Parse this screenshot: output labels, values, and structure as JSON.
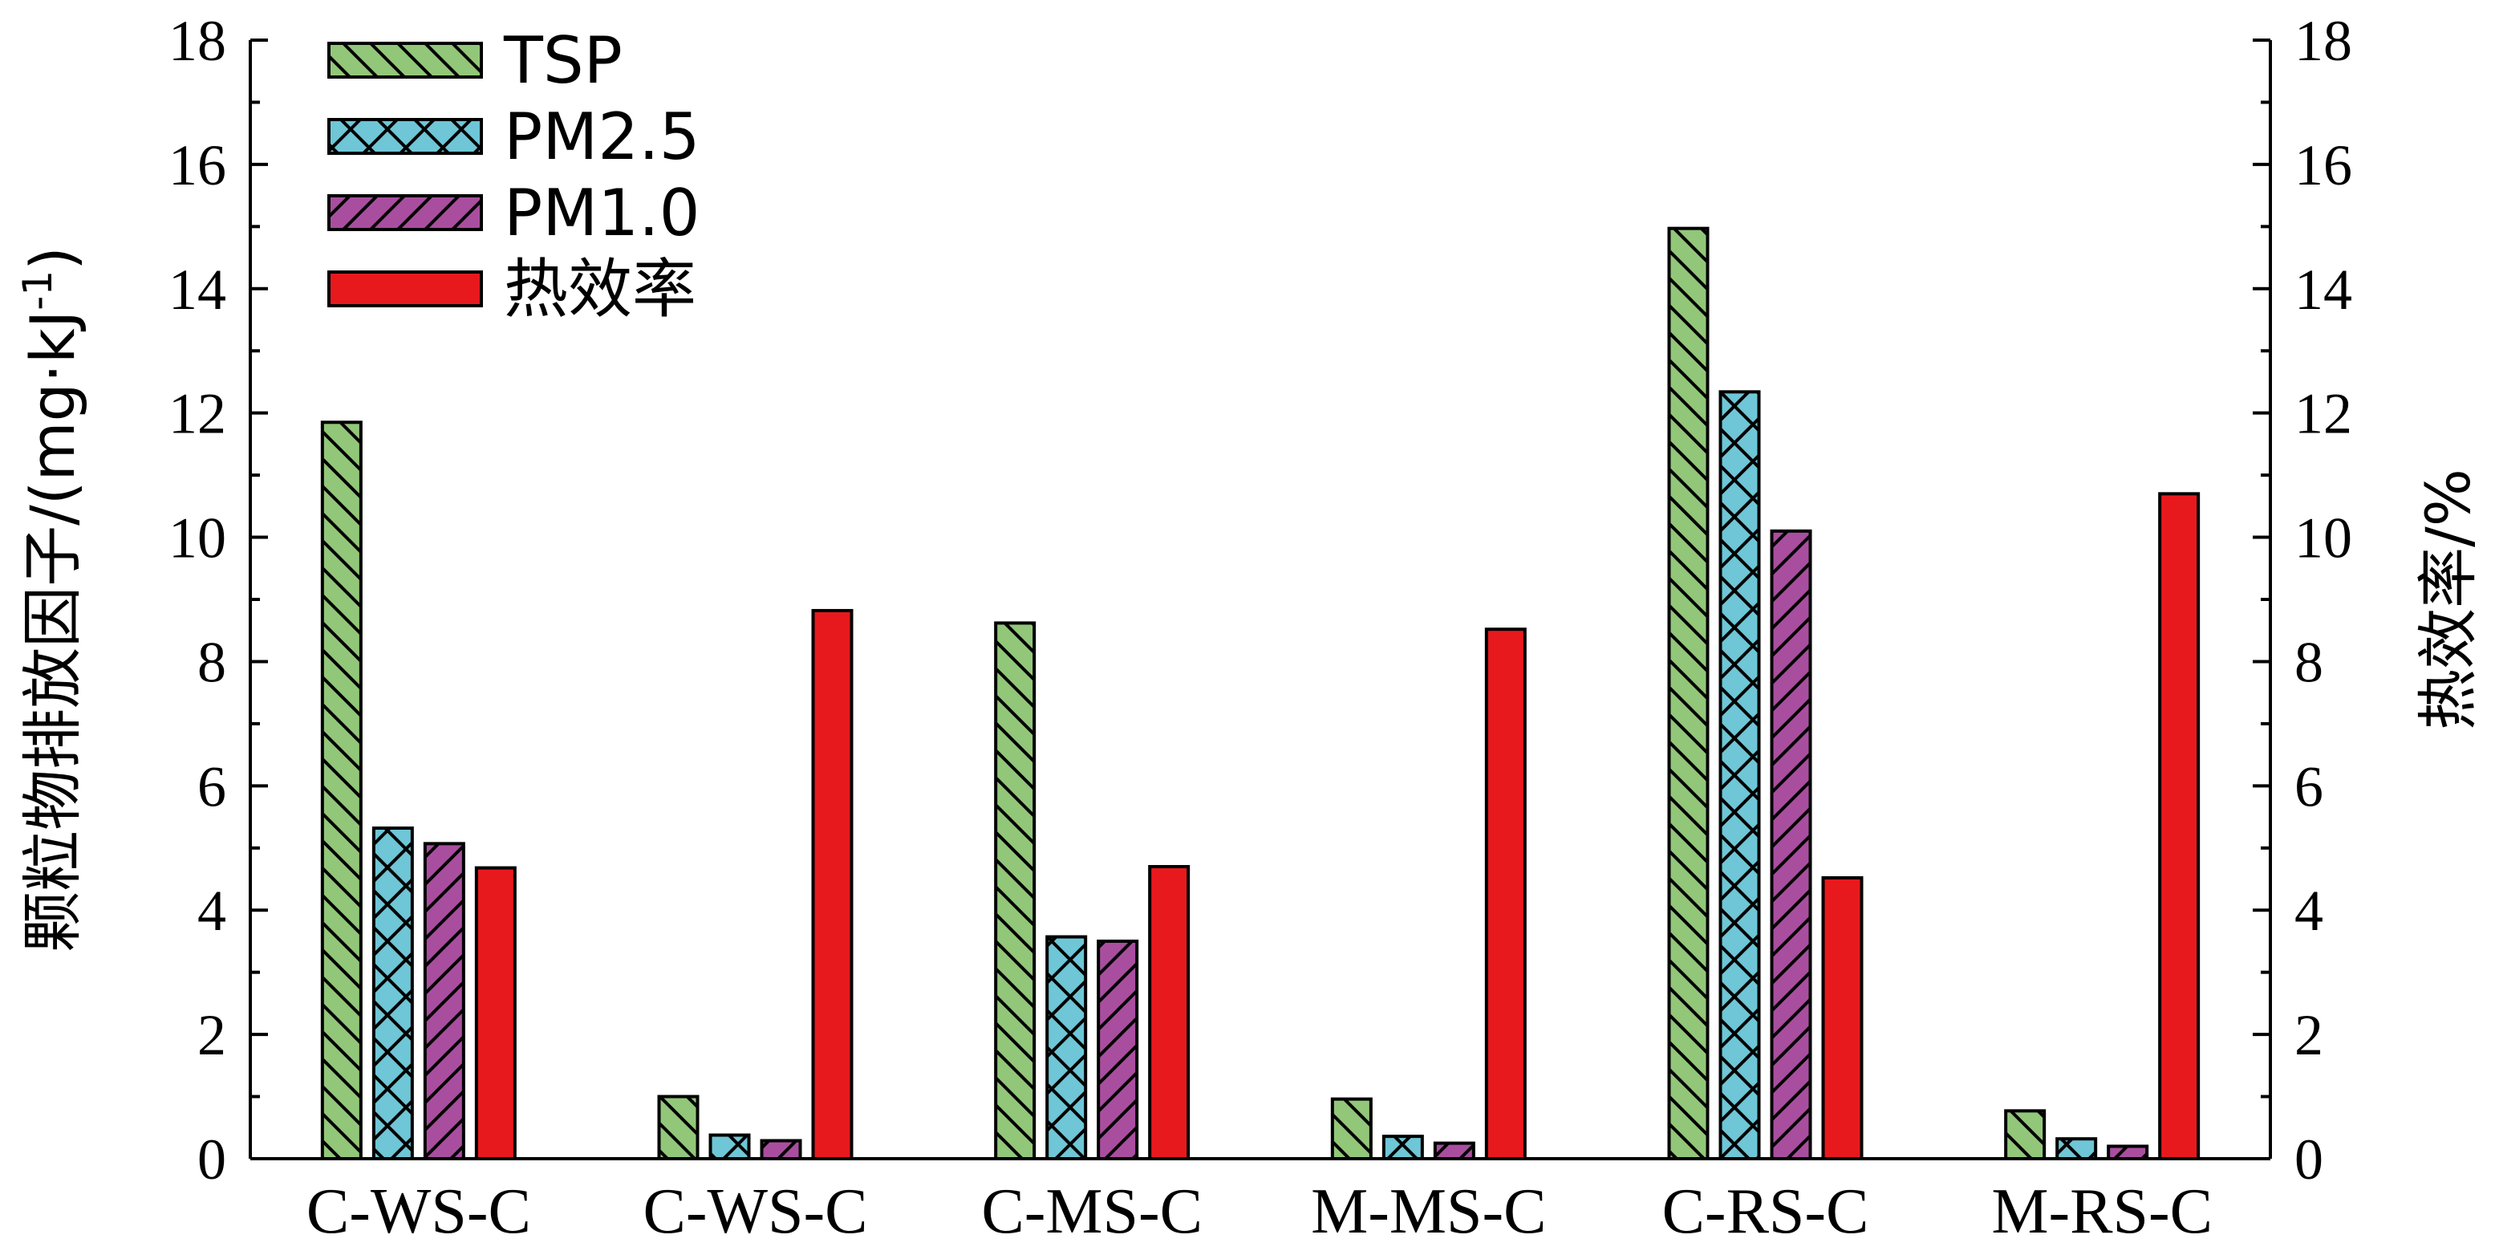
{
  "chart_data": {
    "type": "bar",
    "categories": [
      "C-WS-C",
      "C-WS-C",
      "C-MS-C",
      "M-MS-C",
      "C-RS-C",
      "M-RS-C"
    ],
    "series": [
      {
        "name": "TSP",
        "values": [
          11.85,
          1.0,
          8.62,
          0.96,
          14.97,
          0.77
        ],
        "color": "#92c77a",
        "hatch": "backslash",
        "axis": "left"
      },
      {
        "name": "PM2.5",
        "values": [
          5.32,
          0.38,
          3.57,
          0.36,
          12.34,
          0.32
        ],
        "color": "#6ec6d6",
        "hatch": "cross",
        "axis": "left"
      },
      {
        "name": "PM1.0",
        "values": [
          5.07,
          0.29,
          3.5,
          0.25,
          10.1,
          0.2
        ],
        "color": "#a94e9f",
        "hatch": "slash",
        "axis": "left"
      },
      {
        "name": "热效率",
        "values": [
          4.68,
          8.82,
          4.7,
          8.52,
          4.52,
          10.7
        ],
        "color": "#e8191d",
        "hatch": "none",
        "axis": "right"
      }
    ],
    "ylabel_main": "颗粒物排放因子/(mg·kJ",
    "ylabel_sup": "-1",
    "ylabel_close": ")",
    "ylabel_right": "热效率/%",
    "ylim": [
      0,
      18
    ],
    "ylim_right": [
      0,
      18
    ],
    "yticks": [
      0,
      2,
      4,
      6,
      8,
      10,
      12,
      14,
      16,
      18
    ],
    "legend_position": "top-left",
    "grid": false
  }
}
